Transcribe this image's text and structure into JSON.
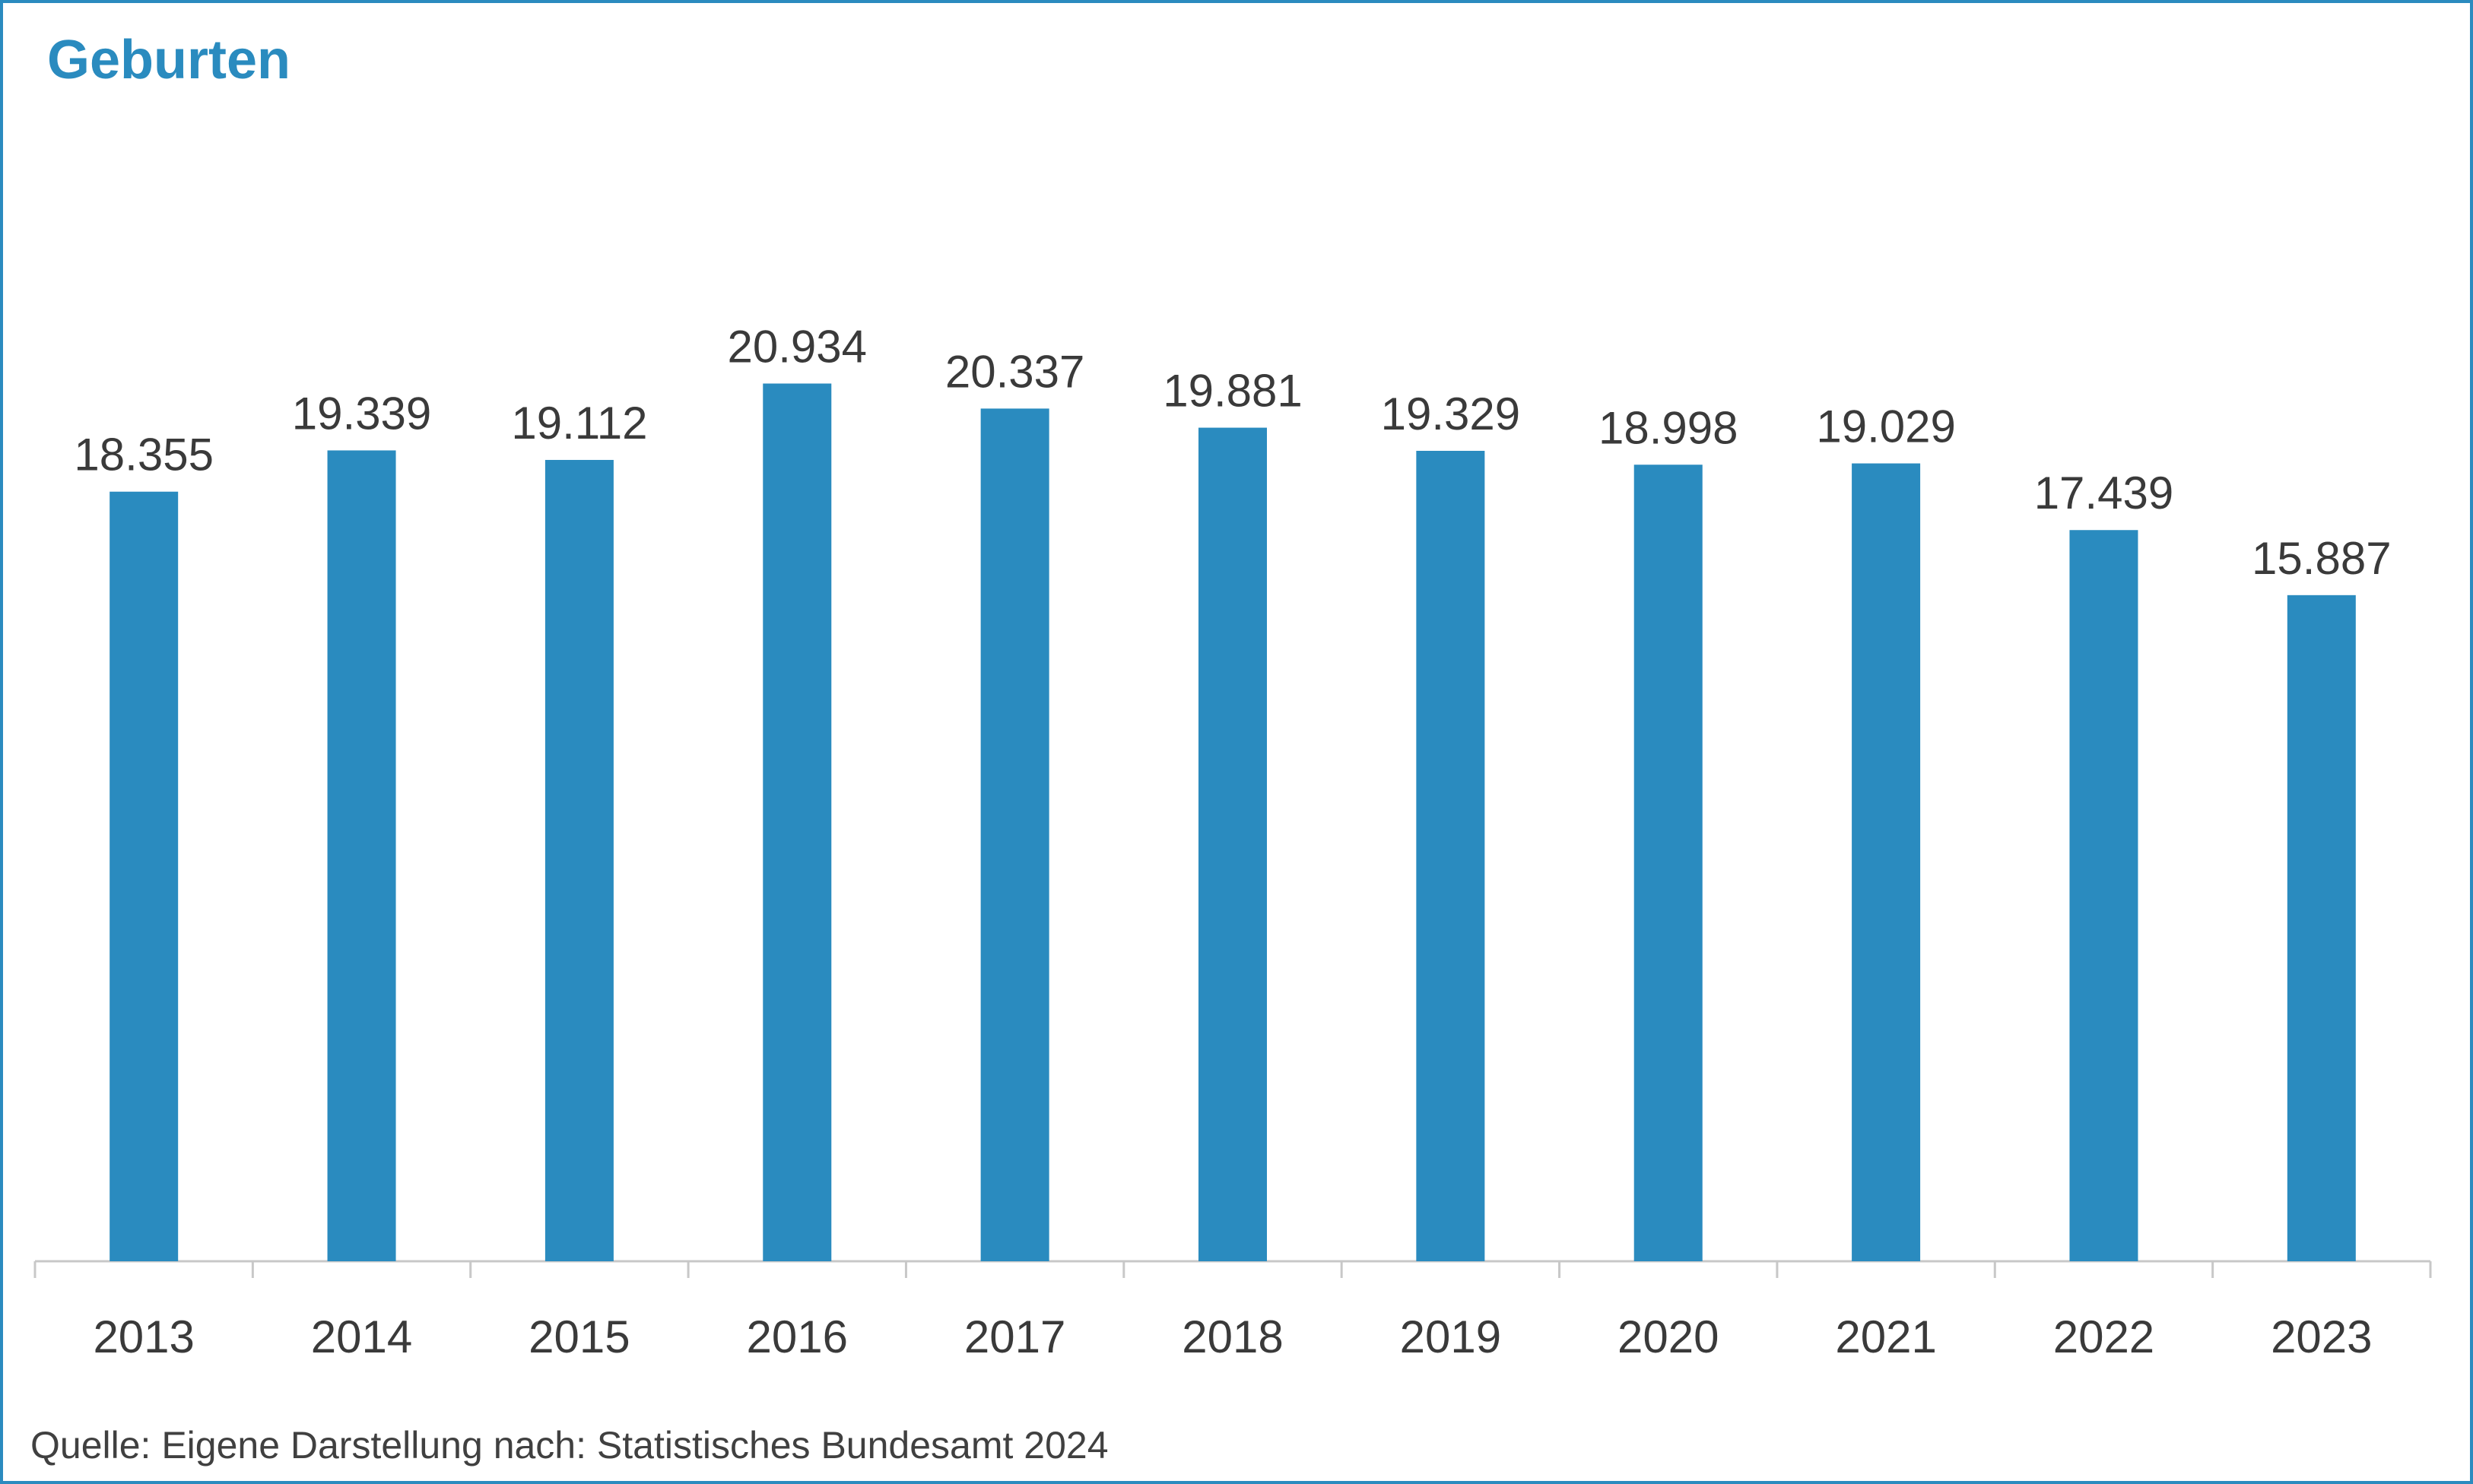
{
  "title": "Geburten",
  "source": "Quelle: Eigene Darstellung nach: Statistisches Bundesamt 2024",
  "colors": {
    "bar": "#2a8bbf",
    "title": "#2a8bbf",
    "frame": "#2a8bbf",
    "axis": "#c8c8c8",
    "text": "#3a3a3a"
  },
  "chart_data": {
    "type": "bar",
    "title": "Geburten",
    "xlabel": "",
    "ylabel": "",
    "categories": [
      "2013",
      "2014",
      "2015",
      "2016",
      "2017",
      "2018",
      "2019",
      "2020",
      "2021",
      "2022",
      "2023"
    ],
    "series": [
      {
        "values": [
          18355,
          19339,
          19112,
          20934,
          20337,
          19881,
          19329,
          18998,
          19029,
          17439,
          15887
        ],
        "labels": [
          "18.355",
          "19.339",
          "19.112",
          "20.934",
          "20.337",
          "19.881",
          "19.329",
          "18.998",
          "19.029",
          "17.439",
          "15.887"
        ]
      }
    ],
    "ylim": [
      0,
      21000
    ],
    "grid": false,
    "legend": "none"
  }
}
